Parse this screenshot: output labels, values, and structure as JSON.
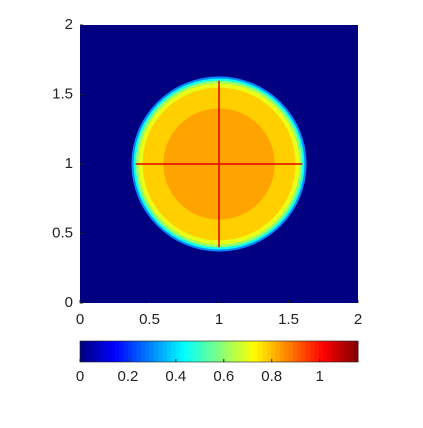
{
  "chart_data": {
    "type": "contour",
    "colormap": "jet",
    "xlim": [
      0,
      2
    ],
    "ylim": [
      0,
      2
    ],
    "xticks": [
      0,
      0.5,
      1,
      1.5,
      2
    ],
    "yticks": [
      0,
      0.5,
      1,
      1.5,
      2
    ],
    "background": 0,
    "rings": [
      {
        "radius": 0.63,
        "value": 0.3
      },
      {
        "radius": 0.615,
        "value": 0.45
      },
      {
        "radius": 0.6,
        "value": 0.6
      },
      {
        "radius": 0.58,
        "value": 0.7
      },
      {
        "radius": 0.55,
        "value": 0.78
      },
      {
        "radius": 0.4,
        "value": 0.83
      }
    ],
    "lines": [
      {
        "x": [
          0.4,
          1.6
        ],
        "y": [
          1,
          1
        ],
        "value": 1.05
      },
      {
        "x": [
          1,
          1
        ],
        "y": [
          0.4,
          1.6
        ],
        "value": 1.05
      }
    ],
    "clim": [
      0,
      1.16
    ],
    "cticks": [
      0,
      0.2,
      0.4,
      0.6,
      0.8,
      1
    ]
  }
}
